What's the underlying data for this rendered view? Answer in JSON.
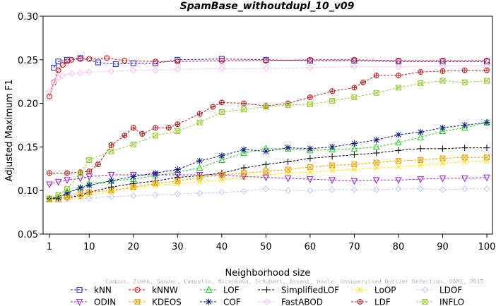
{
  "chart_data": {
    "type": "line",
    "title": "SpamBase_withoutdupl_10_v09",
    "xlabel": "Neighborhood size",
    "ylabel": "Adjusted Maximum F1",
    "xlim": [
      1,
      100
    ],
    "ylim": [
      0.05,
      0.3
    ],
    "xticks": [
      "1",
      "10",
      "20",
      "30",
      "40",
      "50",
      "60",
      "70",
      "80",
      "90",
      "100"
    ],
    "yticks": [
      "0.05",
      "0.10",
      "0.15",
      "0.20",
      "0.25",
      "0.30"
    ],
    "grid": false,
    "legend_position": "bottom",
    "watermark": "Campos, Zimek, Sander, Campello, Micenkova, Schubert, Assent, Houle: Unsupervised Outlier Detection. DAMI, 2015.",
    "series": [
      {
        "name": "kNN",
        "color": "#1f1fd0",
        "marker": "square",
        "x": [
          2,
          3,
          5,
          8,
          12,
          16,
          20,
          25,
          30,
          40,
          50,
          60,
          70,
          80,
          90,
          100
        ],
        "y": [
          0.241,
          0.248,
          0.25,
          0.252,
          0.247,
          0.245,
          0.246,
          0.246,
          0.25,
          0.251,
          0.25,
          0.249,
          0.249,
          0.248,
          0.248,
          0.248
        ]
      },
      {
        "name": "kNNW",
        "color": "#e00000",
        "marker": "circle",
        "x": [
          1,
          2,
          3,
          4,
          5,
          6,
          8,
          10,
          14,
          18,
          25,
          30,
          40,
          50,
          60,
          70,
          80,
          90,
          100
        ],
        "y": [
          0.208,
          0.224,
          0.238,
          0.244,
          0.248,
          0.25,
          0.251,
          0.251,
          0.252,
          0.249,
          0.248,
          0.248,
          0.249,
          0.249,
          0.25,
          0.25,
          0.249,
          0.249,
          0.249
        ]
      },
      {
        "name": "LOF",
        "color": "#22cc22",
        "marker": "triangle-up",
        "x": [
          1,
          3,
          5,
          8,
          10,
          15,
          20,
          25,
          30,
          35,
          40,
          45,
          50,
          55,
          60,
          65,
          70,
          75,
          80,
          85,
          90,
          95,
          100
        ],
        "y": [
          0.09,
          0.09,
          0.098,
          0.103,
          0.108,
          0.111,
          0.113,
          0.117,
          0.121,
          0.126,
          0.135,
          0.143,
          0.148,
          0.148,
          0.146,
          0.147,
          0.148,
          0.15,
          0.155,
          0.161,
          0.168,
          0.172,
          0.178
        ]
      },
      {
        "name": "SimplifiedLOF",
        "color": "#000000",
        "marker": "plus",
        "x": [
          1,
          3,
          5,
          8,
          10,
          15,
          20,
          25,
          30,
          35,
          40,
          45,
          50,
          55,
          60,
          65,
          70,
          75,
          80,
          85,
          90,
          95,
          100
        ],
        "y": [
          0.09,
          0.091,
          0.092,
          0.094,
          0.098,
          0.104,
          0.108,
          0.111,
          0.115,
          0.117,
          0.12,
          0.126,
          0.13,
          0.133,
          0.137,
          0.139,
          0.141,
          0.143,
          0.146,
          0.148,
          0.148,
          0.149,
          0.149
        ]
      },
      {
        "name": "LoOP",
        "color": "#ffe000",
        "marker": "x",
        "x": [
          1,
          3,
          5,
          8,
          10,
          15,
          20,
          25,
          30,
          35,
          40,
          45,
          50,
          55,
          60,
          65,
          70,
          75,
          80,
          85,
          90,
          95,
          100
        ],
        "y": [
          0.089,
          0.09,
          0.091,
          0.092,
          0.094,
          0.099,
          0.103,
          0.106,
          0.108,
          0.11,
          0.112,
          0.115,
          0.118,
          0.12,
          0.121,
          0.123,
          0.124,
          0.126,
          0.127,
          0.129,
          0.131,
          0.133,
          0.134
        ]
      },
      {
        "name": "LDOF",
        "color": "#c8c8ee",
        "marker": "diamond",
        "x": [
          1,
          5,
          10,
          15,
          20,
          25,
          30,
          35,
          40,
          45,
          50,
          55,
          60,
          65,
          70,
          75,
          80,
          85,
          90,
          95,
          100
        ],
        "y": [
          0.09,
          0.09,
          0.091,
          0.093,
          0.094,
          0.095,
          0.096,
          0.097,
          0.098,
          0.099,
          0.102,
          0.1,
          0.1,
          0.101,
          0.101,
          0.101,
          0.102,
          0.102,
          0.101,
          0.102,
          0.102
        ]
      },
      {
        "name": "ODIN",
        "color": "#9a20d0",
        "marker": "triangle-down",
        "x": [
          1,
          3,
          5,
          8,
          10,
          15,
          20,
          25,
          30,
          35,
          40,
          45,
          50,
          55,
          60,
          65,
          70,
          75,
          80,
          85,
          90,
          95,
          100
        ],
        "y": [
          0.107,
          0.11,
          0.112,
          0.114,
          0.116,
          0.118,
          0.118,
          0.118,
          0.118,
          0.118,
          0.118,
          0.116,
          0.115,
          0.114,
          0.113,
          0.112,
          0.111,
          0.112,
          0.112,
          0.113,
          0.114,
          0.114,
          0.115
        ]
      },
      {
        "name": "KDEOS",
        "color": "#f0a000",
        "marker": "square-x",
        "x": [
          1,
          3,
          5,
          8,
          10,
          15,
          20,
          25,
          30,
          35,
          40,
          45,
          50,
          55,
          60,
          65,
          70,
          75,
          80,
          85,
          90,
          95,
          100
        ],
        "y": [
          0.09,
          0.09,
          0.093,
          0.096,
          0.098,
          0.1,
          0.104,
          0.108,
          0.111,
          0.115,
          0.118,
          0.12,
          0.122,
          0.124,
          0.127,
          0.129,
          0.13,
          0.132,
          0.134,
          0.135,
          0.137,
          0.138,
          0.138
        ]
      },
      {
        "name": "COF",
        "color": "#0a1a80",
        "marker": "asterisk",
        "x": [
          1,
          3,
          5,
          8,
          10,
          15,
          20,
          25,
          30,
          35,
          40,
          45,
          50,
          55,
          60,
          65,
          70,
          75,
          80,
          85,
          90,
          95,
          100
        ],
        "y": [
          0.091,
          0.092,
          0.097,
          0.103,
          0.106,
          0.111,
          0.116,
          0.12,
          0.124,
          0.134,
          0.14,
          0.147,
          0.145,
          0.149,
          0.148,
          0.15,
          0.154,
          0.158,
          0.164,
          0.167,
          0.172,
          0.175,
          0.178
        ]
      },
      {
        "name": "FastABOD",
        "color": "#ffbbf5",
        "marker": "diamond",
        "x": [
          1,
          2,
          3,
          4,
          6,
          8,
          10,
          15,
          20,
          25,
          30,
          40,
          50,
          60,
          70,
          80,
          90,
          100
        ],
        "y": [
          0.214,
          0.224,
          0.229,
          0.232,
          0.234,
          0.235,
          0.236,
          0.237,
          0.238,
          0.238,
          0.239,
          0.24,
          0.24,
          0.241,
          0.242,
          0.242,
          0.243,
          0.243
        ]
      },
      {
        "name": "LDF",
        "color": "#b02020",
        "marker": "circle-plus",
        "x": [
          1,
          5,
          8,
          10,
          12,
          15,
          18,
          20,
          22,
          25,
          28,
          30,
          35,
          38,
          40,
          45,
          50,
          55,
          60,
          65,
          70,
          72,
          75,
          80,
          85,
          90,
          95,
          100
        ],
        "y": [
          0.12,
          0.12,
          0.121,
          0.122,
          0.13,
          0.152,
          0.163,
          0.172,
          0.165,
          0.172,
          0.172,
          0.176,
          0.188,
          0.196,
          0.201,
          0.2,
          0.197,
          0.2,
          0.207,
          0.214,
          0.218,
          0.224,
          0.232,
          0.232,
          0.236,
          0.237,
          0.238,
          0.238
        ]
      },
      {
        "name": "INFLO",
        "color": "#99cc33",
        "marker": "star",
        "x": [
          1,
          3,
          5,
          8,
          10,
          15,
          20,
          25,
          30,
          35,
          40,
          45,
          50,
          55,
          60,
          65,
          70,
          75,
          80,
          85,
          90,
          95,
          100
        ],
        "y": [
          0.091,
          0.095,
          0.102,
          0.12,
          0.135,
          0.145,
          0.153,
          0.163,
          0.168,
          0.178,
          0.19,
          0.193,
          0.196,
          0.198,
          0.199,
          0.203,
          0.207,
          0.212,
          0.218,
          0.223,
          0.226,
          0.224,
          0.226
        ]
      }
    ]
  }
}
